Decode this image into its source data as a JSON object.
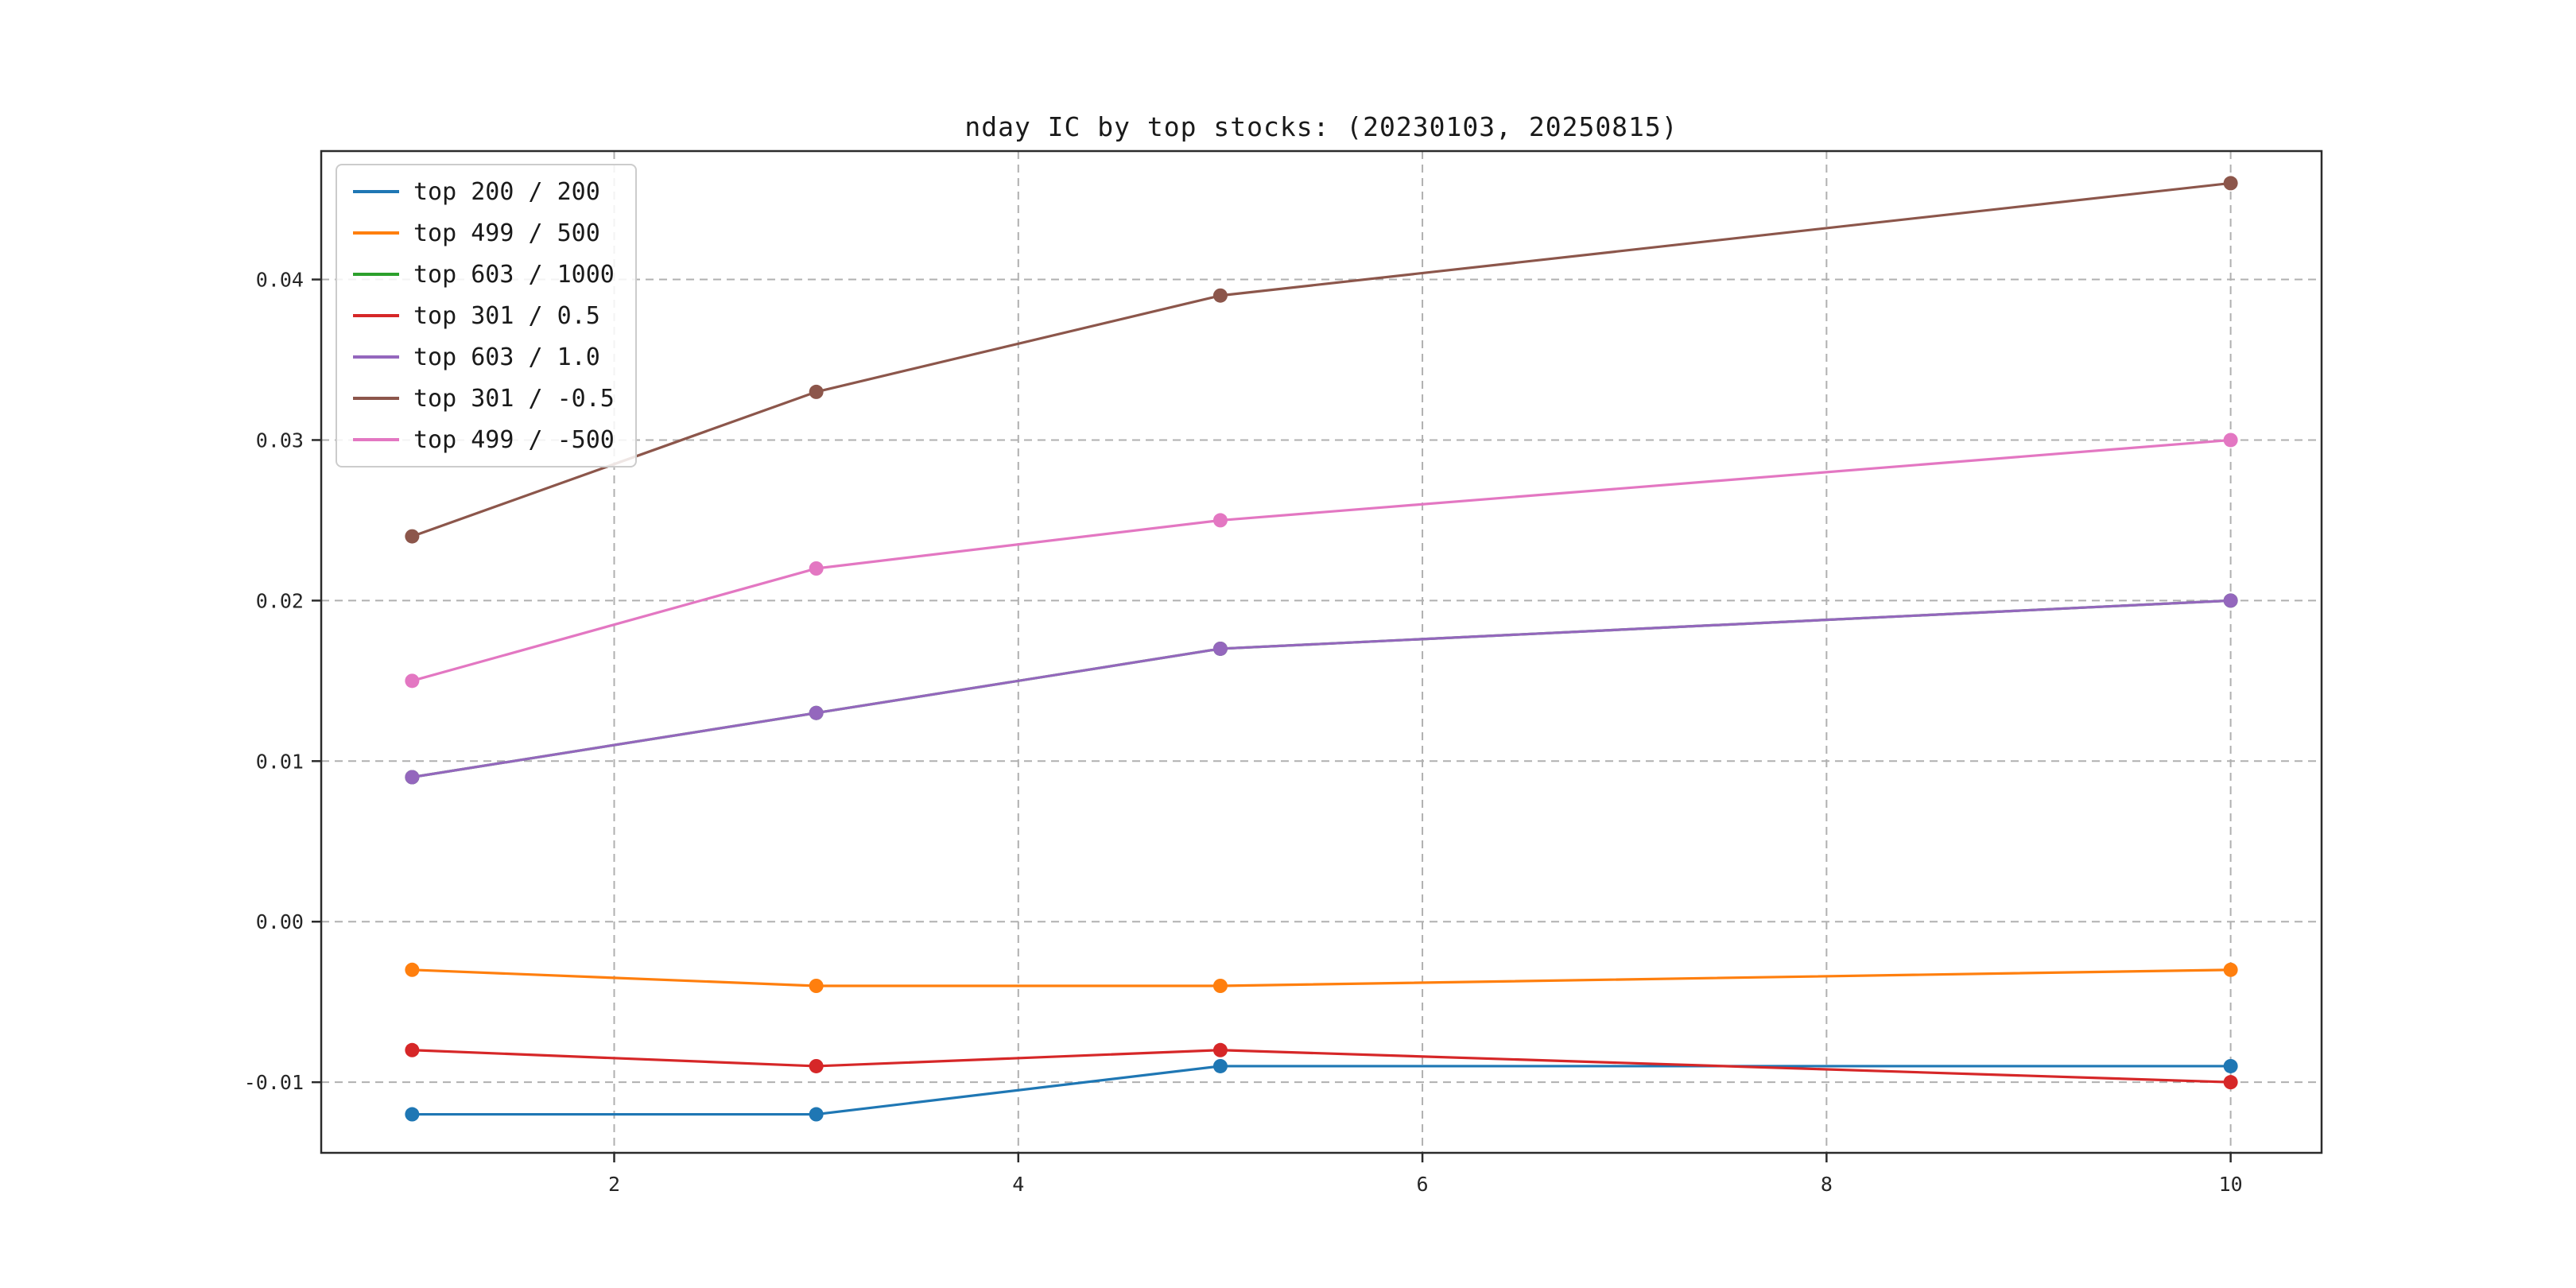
{
  "window": {
    "background": "#ffffff"
  },
  "chart_data": {
    "type": "line",
    "title": "nday IC by top stocks: (20230103, 20250815)",
    "xlabel": "",
    "ylabel": "",
    "x": [
      1,
      3,
      5,
      10
    ],
    "xlim": [
      0.55,
      10.45
    ],
    "ylim": [
      -0.0144,
      0.048
    ],
    "xticks": [
      2,
      4,
      6,
      8,
      10
    ],
    "xtick_labels": [
      "2",
      "4",
      "6",
      "8",
      "10"
    ],
    "yticks": [
      -0.01,
      0.0,
      0.01,
      0.02,
      0.03,
      0.04
    ],
    "ytick_labels": [
      "-0.01",
      "0.00",
      "0.01",
      "0.02",
      "0.03",
      "0.04"
    ],
    "grid": true,
    "grid_style": "dashed",
    "legend_position": "upper left",
    "series": [
      {
        "name": "top 200 / 200",
        "color": "#1f77b4",
        "values": [
          -0.012,
          -0.012,
          -0.009,
          -0.009
        ]
      },
      {
        "name": "top 499 / 500",
        "color": "#ff7f0e",
        "values": [
          -0.003,
          -0.004,
          -0.004,
          -0.003
        ]
      },
      {
        "name": "top 603 / 1000",
        "color": "#2ca02c",
        "values": [
          0.009,
          0.013,
          0.017,
          0.02
        ]
      },
      {
        "name": "top 301 / 0.5",
        "color": "#d62728",
        "values": [
          -0.008,
          -0.009,
          -0.008,
          -0.01
        ]
      },
      {
        "name": "top 603 / 1.0",
        "color": "#9467bd",
        "values": [
          0.009,
          0.013,
          0.017,
          0.02
        ]
      },
      {
        "name": "top 301 / -0.5",
        "color": "#8c564b",
        "values": [
          0.024,
          0.033,
          0.039,
          0.046
        ]
      },
      {
        "name": "top 499 / -500",
        "color": "#e377c2",
        "values": [
          0.015,
          0.022,
          0.025,
          0.03
        ]
      }
    ]
  },
  "axes": {
    "grid_color": "#b0b0b0",
    "spine_color": "#2b2b2b",
    "tick_color": "#2b2b2b",
    "tick_label_color": "#262626",
    "plot_background": "#ffffff"
  }
}
